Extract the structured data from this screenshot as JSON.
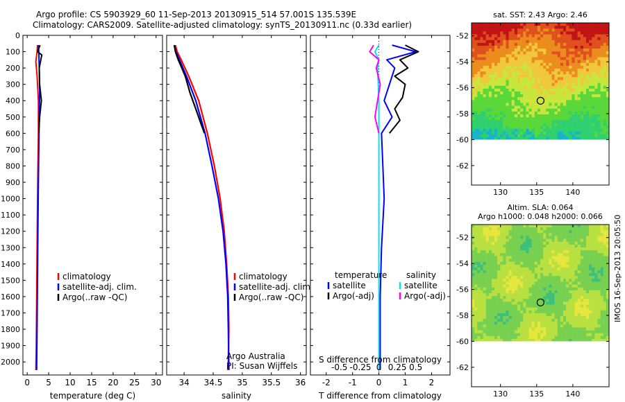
{
  "header": {
    "line1": "Argo profile: CS 5903929_60 11-Sep-2013 20130915_514 57.001S 135.539E",
    "line2": "Climatology: CARS2009. Satellite-adjusted climatology: synTS_20130911.nc (0.33d earlier)"
  },
  "footer": {
    "credit": "IMOS 16-Sep-2013 20:05:50"
  },
  "colors": {
    "climatology": "#ff0000",
    "satellite": "#0000ff",
    "argo": "#000000",
    "sal_satellite": "#00e5ee",
    "sal_argo": "#ff00ff"
  },
  "chart_data": [
    {
      "type": "line",
      "panel": "temperature",
      "xlabel": "temperature (deg C)",
      "ylabel": "",
      "xlim": [
        -1,
        31.5
      ],
      "ylim": [
        2080,
        0
      ],
      "xticks": [
        0,
        5,
        10,
        15,
        20,
        25,
        30
      ],
      "yticks": [
        0,
        100,
        200,
        300,
        400,
        500,
        600,
        700,
        800,
        900,
        1000,
        1100,
        1200,
        1300,
        1400,
        1500,
        1600,
        1700,
        1800,
        1900,
        2000
      ],
      "legend": [
        "climatology",
        "satellite-adj. clim.",
        "Argo(..raw -QC)"
      ],
      "legend_placement": "center-right",
      "series": [
        {
          "name": "climatology",
          "color": "#ff0000",
          "x": [
            2.4,
            2.3,
            2.0,
            2.3,
            2.6,
            2.6,
            2.5,
            2.4,
            2.3,
            2.2,
            2.1,
            2.0
          ],
          "y": [
            60,
            100,
            160,
            250,
            400,
            600,
            800,
            1000,
            1300,
            1600,
            1900,
            2050
          ]
        },
        {
          "name": "satellite-adj. clim.",
          "color": "#0000ff",
          "x": [
            2.6,
            2.7,
            2.8,
            2.9,
            2.8,
            2.7,
            2.6,
            2.5,
            2.4,
            2.3,
            2.2
          ],
          "y": [
            60,
            100,
            200,
            350,
            500,
            700,
            900,
            1200,
            1500,
            1800,
            2050
          ]
        },
        {
          "name": "Argo(..raw -QC)",
          "color": "#000000",
          "x": [
            3.0,
            2.4,
            3.4,
            2.8,
            2.9,
            3.3,
            2.9,
            2.7
          ],
          "y": [
            60,
            100,
            120,
            200,
            300,
            400,
            500,
            600
          ]
        }
      ]
    },
    {
      "type": "line",
      "panel": "salinity",
      "xlabel": "salinity",
      "ylabel": "",
      "xlim": [
        33.7,
        36.1
      ],
      "ylim": [
        2080,
        0
      ],
      "xticks": [
        34,
        34.5,
        35,
        35.5,
        36
      ],
      "legend": [
        "climatology",
        "satellite-adj. clim.",
        "Argo(..raw -QC)"
      ],
      "legend_placement": "center-right",
      "annotations": [
        "Argo Australia",
        "PI: Susan Wijffels"
      ],
      "series": [
        {
          "name": "climatology",
          "color": "#ff0000",
          "x": [
            33.85,
            33.88,
            33.95,
            34.08,
            34.25,
            34.4,
            34.52,
            34.62,
            34.69,
            34.73,
            34.76,
            34.77,
            34.76,
            34.75
          ],
          "y": [
            60,
            100,
            150,
            250,
            400,
            600,
            800,
            1000,
            1200,
            1400,
            1600,
            1800,
            2000,
            2050
          ]
        },
        {
          "name": "satellite-adj. clim.",
          "color": "#0000ff",
          "x": [
            33.83,
            33.86,
            33.92,
            34.04,
            34.2,
            34.36,
            34.48,
            34.59,
            34.67,
            34.72,
            34.75,
            34.76,
            34.77
          ],
          "y": [
            60,
            100,
            150,
            250,
            400,
            600,
            800,
            1000,
            1200,
            1400,
            1600,
            1800,
            2050
          ]
        },
        {
          "name": "Argo(..raw -QC)",
          "color": "#000000",
          "x": [
            33.83,
            33.85,
            33.9,
            33.96,
            34.02,
            34.1,
            34.2,
            34.3,
            34.35
          ],
          "y": [
            60,
            100,
            150,
            200,
            250,
            350,
            450,
            550,
            600
          ]
        }
      ]
    },
    {
      "type": "line",
      "panel": "differences",
      "xlabel": "T difference from climatology",
      "xlabel2": "S difference from climatology",
      "xlim": [
        -2.6,
        2.7
      ],
      "ylim": [
        2080,
        0
      ],
      "xticks": [
        -2,
        -1,
        0,
        1,
        2
      ],
      "xticks2": [
        "-0.5",
        "-0.25",
        "0",
        "0.25",
        "0.5"
      ],
      "legend_groups": [
        "temperature",
        "salinity"
      ],
      "legend": [
        "satellite",
        "Argo(-adj)",
        "satellite",
        "Argo(-adj)"
      ],
      "legend_placement": "center",
      "series": [
        {
          "name": "satellite",
          "group": "temperature",
          "color": "#0000ff",
          "x": [
            0.5,
            1.4,
            0.3,
            0.6,
            0.4,
            0.2,
            0.5,
            0.1,
            0.15,
            0.2,
            0.1,
            0.05,
            0.05
          ],
          "y": [
            60,
            100,
            150,
            200,
            300,
            400,
            500,
            600,
            800,
            1000,
            1300,
            1600,
            2050
          ]
        },
        {
          "name": "Argo(-adj)",
          "group": "temperature",
          "color": "#000000",
          "x": [
            1.0,
            1.5,
            0.8,
            1.1,
            0.6,
            1.0,
            0.9,
            0.6,
            0.8,
            0.4
          ],
          "y": [
            60,
            100,
            150,
            200,
            250,
            300,
            380,
            450,
            520,
            600
          ]
        },
        {
          "name": "satellite",
          "group": "salinity",
          "color": "#00e5ee",
          "x": [
            0.0,
            -0.15,
            0.0,
            -0.05,
            0.0,
            0.0,
            0.0,
            0.0,
            0.0
          ],
          "y": [
            60,
            100,
            150,
            200,
            400,
            700,
            1000,
            1500,
            2050
          ]
        },
        {
          "name": "Argo(-adj)",
          "group": "salinity",
          "color": "#ff00ff",
          "x": [
            -0.2,
            -0.35,
            0.0,
            -0.1,
            0.05,
            -0.05,
            -0.15,
            0.0
          ],
          "y": [
            60,
            100,
            150,
            200,
            300,
            400,
            500,
            600
          ]
        }
      ]
    },
    {
      "type": "heatmap",
      "panel": "sst",
      "title": "sat. SST: 2.43 Argo: 2.46",
      "xlim": [
        126,
        145
      ],
      "ylim": [
        -63.5,
        -51
      ],
      "xticks": [
        130,
        135,
        140
      ],
      "yticks": [
        -52,
        -54,
        -56,
        -58,
        -60,
        -62
      ],
      "marker": {
        "lon": 135.539,
        "lat": -57.001
      },
      "valid_lat_min": -60
    },
    {
      "type": "heatmap",
      "panel": "sla",
      "title": "Altim. SLA: 0.064",
      "subtitle": "Argo h1000: 0.048 h2000: 0.066",
      "xlim": [
        126,
        145
      ],
      "ylim": [
        -63.5,
        -51
      ],
      "xticks": [
        130,
        135,
        140
      ],
      "yticks": [
        -52,
        -54,
        -56,
        -58,
        -60,
        -62
      ],
      "marker": {
        "lon": 135.539,
        "lat": -57.001
      },
      "valid_lat_min": -60
    }
  ]
}
